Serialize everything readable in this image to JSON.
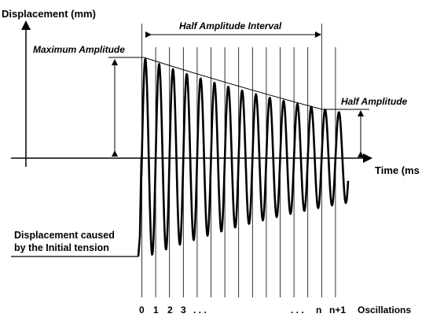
{
  "labels": {
    "y_axis": "Displacement (mm)",
    "x_axis": "Time (ms",
    "interval": "Half Amplitude Interval",
    "max_amp": "Maximum Amplitude",
    "half_amp": "Half Amplitude",
    "initial_line1": "Displacement caused",
    "initial_line2": "by the Initial tension",
    "osc_0": "0",
    "osc_1": "1",
    "osc_2": "2",
    "osc_3": "3",
    "dots_left": ". . .",
    "dots_right": ". . .",
    "osc_n": "n",
    "osc_n1": "n+1",
    "osc_word": "Oscillations"
  },
  "colors": {
    "ink": "#000000",
    "background": "#ffffff"
  }
}
